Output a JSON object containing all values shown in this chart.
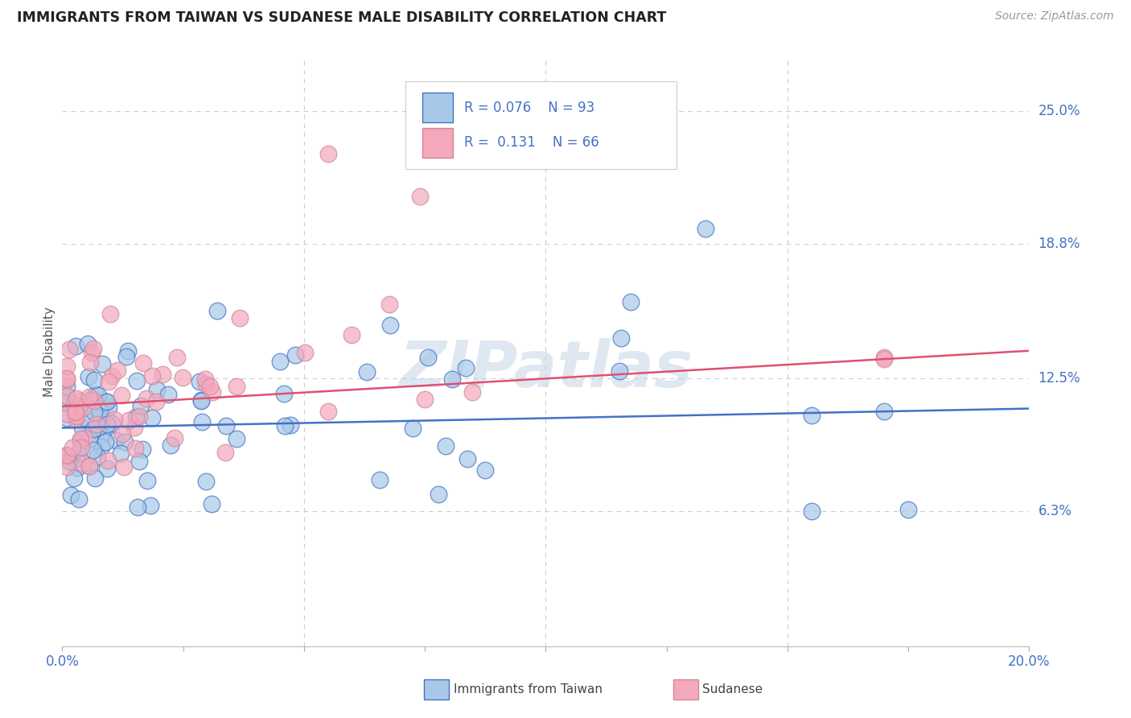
{
  "title": "IMMIGRANTS FROM TAIWAN VS SUDANESE MALE DISABILITY CORRELATION CHART",
  "source": "Source: ZipAtlas.com",
  "ylabel": "Male Disability",
  "ytick_labels": [
    "6.3%",
    "12.5%",
    "18.8%",
    "25.0%"
  ],
  "ytick_values": [
    0.063,
    0.125,
    0.188,
    0.25
  ],
  "xlim": [
    0.0,
    0.2
  ],
  "ylim": [
    0.0,
    0.275
  ],
  "watermark": "ZIPatlas",
  "color_taiwan": "#a8c8e8",
  "color_sudanese": "#f4a8bc",
  "color_taiwan_line": "#4472c4",
  "color_sudanese_line": "#e05070",
  "color_title": "#222222",
  "color_axis_blue": "#4472c4",
  "color_grid": "#cccccc",
  "legend_entries": [
    {
      "r": "R = 0.076",
      "n": "N = 93",
      "color": "#a8c8e8",
      "edge": "#4472c4"
    },
    {
      "r": "R =  0.131",
      "n": "N = 66",
      "color": "#f4a8bc",
      "edge": "#d4849a"
    }
  ],
  "tw_line_x0": 0.0,
  "tw_line_x1": 0.2,
  "tw_line_y0": 0.102,
  "tw_line_y1": 0.111,
  "su_line_x0": 0.0,
  "su_line_x1": 0.2,
  "su_line_y0": 0.112,
  "su_line_y1": 0.138
}
